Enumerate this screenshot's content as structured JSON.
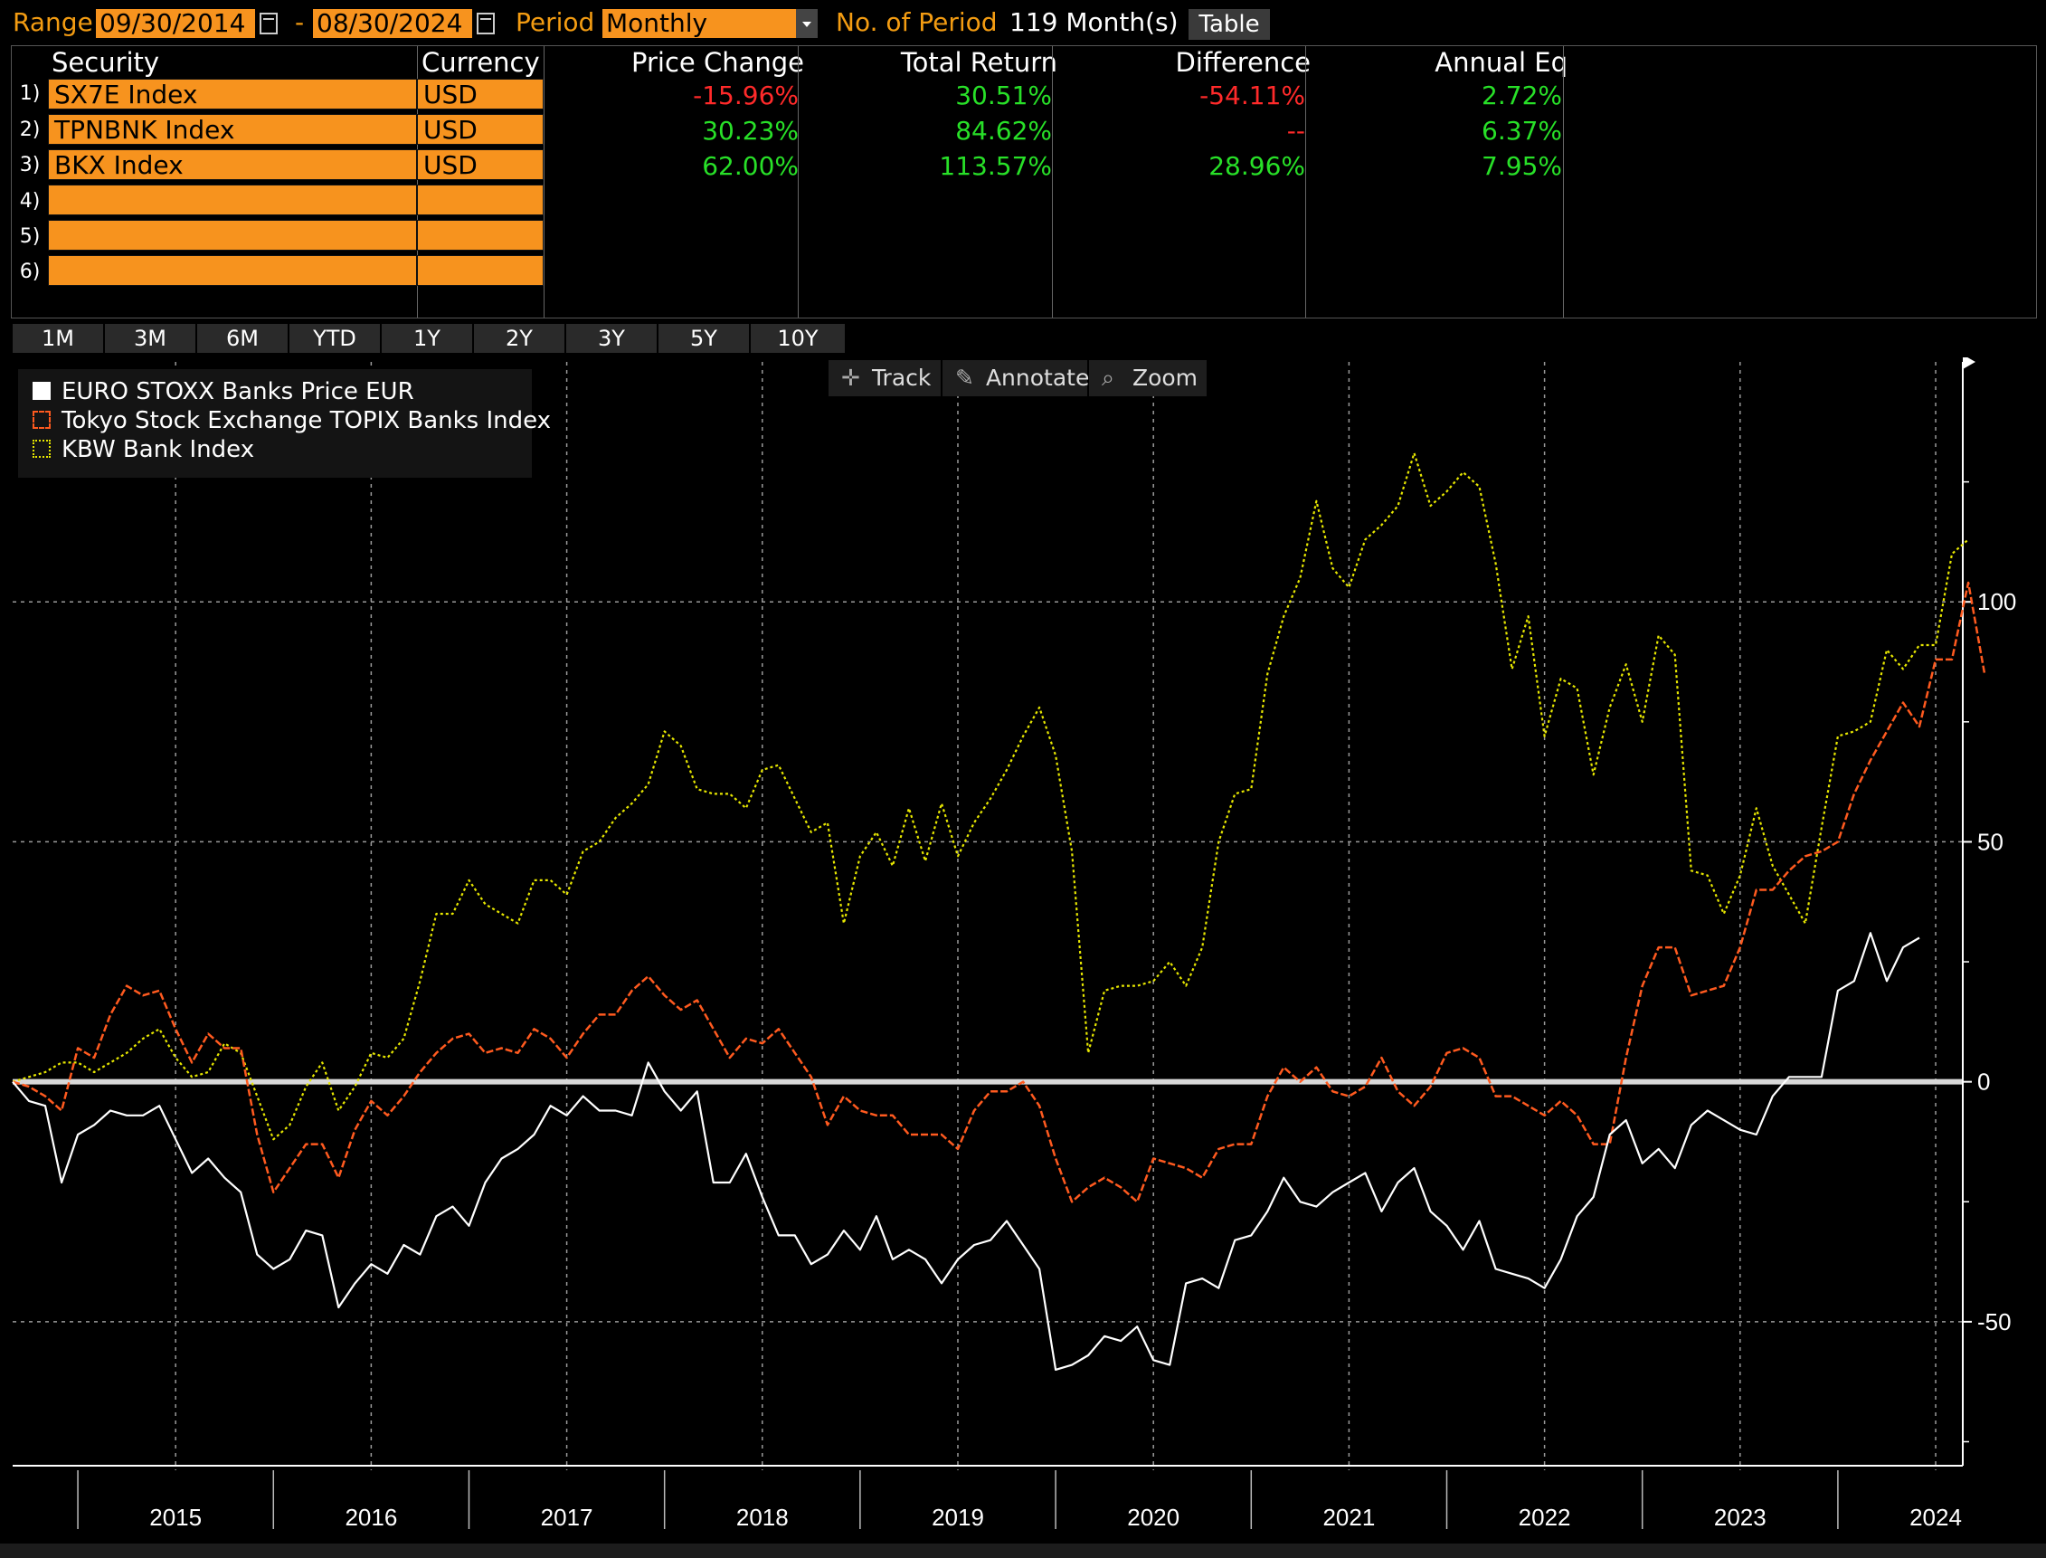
{
  "header": {
    "range_label": "Range",
    "start_date": "09/30/2014",
    "range_sep": "-",
    "end_date": "08/30/2024",
    "period_label": "Period",
    "period_value": "Monthly",
    "num_period_label": "No. of Period",
    "num_period_value": "119 Month(s)",
    "table_button": "Table"
  },
  "table": {
    "columns": [
      "Security",
      "Currency",
      "Price Change",
      "Total Return",
      "Difference",
      "Annual Eq"
    ],
    "rows": [
      {
        "num": "1)",
        "security": "SX7E Index",
        "currency": "USD",
        "price_change": "-15.96%",
        "total_return": "30.51%",
        "difference": "-54.11%",
        "annual_eq": "2.72%"
      },
      {
        "num": "2)",
        "security": "TPNBNK Index",
        "currency": "USD",
        "price_change": "30.23%",
        "total_return": "84.62%",
        "difference": "--",
        "annual_eq": "6.37%"
      },
      {
        "num": "3)",
        "security": "BKX Index",
        "currency": "USD",
        "price_change": "62.00%",
        "total_return": "113.57%",
        "difference": "28.96%",
        "annual_eq": "7.95%"
      },
      {
        "num": "4)",
        "security": "",
        "currency": "",
        "price_change": "",
        "total_return": "",
        "difference": "",
        "annual_eq": ""
      },
      {
        "num": "5)",
        "security": "",
        "currency": "",
        "price_change": "",
        "total_return": "",
        "difference": "",
        "annual_eq": ""
      },
      {
        "num": "6)",
        "security": "",
        "currency": "",
        "price_change": "",
        "total_return": "",
        "difference": "",
        "annual_eq": ""
      }
    ]
  },
  "periods": [
    "1M",
    "3M",
    "6M",
    "YTD",
    "1Y",
    "2Y",
    "3Y",
    "5Y",
    "10Y"
  ],
  "tools": {
    "track": "Track",
    "annotate": "Annotate",
    "zoom": "Zoom"
  },
  "colors": {
    "orange": "#f7931e",
    "white": "#ffffff",
    "tokyo": "#ff5a1f",
    "kbw": "#e6e600",
    "positive": "#28e028",
    "negative": "#ff2a2a"
  },
  "chart_data": {
    "type": "line",
    "x_start": "2014-09",
    "x_step": "month",
    "x_ticks": [
      "2015",
      "2016",
      "2017",
      "2018",
      "2019",
      "2020",
      "2021",
      "2022",
      "2023",
      "2024"
    ],
    "y_ticks": [
      -50,
      0,
      50,
      100
    ],
    "ylim": [
      -80,
      150
    ],
    "grid": true,
    "legend": "top-left",
    "series": [
      {
        "name": "EURO STOXX Banks Price EUR",
        "style": "solid",
        "color": "#ffffff",
        "values": [
          0,
          -4,
          -5,
          -21,
          -11,
          -9,
          -6,
          -7,
          -7,
          -5,
          -12,
          -19,
          -16,
          -20,
          -23,
          -36,
          -39,
          -37,
          -31,
          -32,
          -47,
          -42,
          -38,
          -40,
          -34,
          -36,
          -28,
          -26,
          -30,
          -21,
          -16,
          -14,
          -11,
          -5,
          -7,
          -3,
          -6,
          -6,
          -7,
          4,
          -2,
          -6,
          -2,
          -21,
          -21,
          -15,
          -24,
          -32,
          -32,
          -38,
          -36,
          -31,
          -35,
          -28,
          -37,
          -35,
          -37,
          -42,
          -37,
          -34,
          -33,
          -29,
          -34,
          -39,
          -60,
          -59,
          -57,
          -53,
          -54,
          -51,
          -58,
          -59,
          -42,
          -41,
          -43,
          -33,
          -32,
          -27,
          -20,
          -25,
          -26,
          -23,
          -21,
          -19,
          -27,
          -21,
          -18,
          -27,
          -30,
          -35,
          -29,
          -39,
          -40,
          -41,
          -43,
          -37,
          -28,
          -24,
          -11,
          -8,
          -17,
          -14,
          -18,
          -9,
          -6,
          -8,
          -10,
          -11,
          -3,
          1,
          1,
          1,
          19,
          21,
          31,
          21,
          28,
          30
        ]
      },
      {
        "name": "Tokyo Stock Exchange TOPIX Banks Index",
        "style": "dashed",
        "color": "#ff5a1f",
        "values": [
          0,
          -1,
          -3,
          -6,
          7,
          5,
          14,
          20,
          18,
          19,
          11,
          4,
          10,
          7,
          7,
          -11,
          -23,
          -18,
          -13,
          -13,
          -20,
          -10,
          -4,
          -7,
          -3,
          2,
          6,
          9,
          10,
          6,
          7,
          6,
          11,
          9,
          5,
          10,
          14,
          14,
          19,
          22,
          18,
          15,
          17,
          11,
          5,
          9,
          8,
          11,
          6,
          1,
          -9,
          -3,
          -6,
          -7,
          -7,
          -11,
          -11,
          -11,
          -14,
          -6,
          -2,
          -2,
          0,
          -5,
          -16,
          -25,
          -22,
          -20,
          -22,
          -25,
          -16,
          -17,
          -18,
          -20,
          -14,
          -13,
          -13,
          -3,
          3,
          0,
          3,
          -2,
          -3,
          -1,
          5,
          -2,
          -5,
          -1,
          6,
          7,
          5,
          -3,
          -3,
          -5,
          -7,
          -4,
          -7,
          -13,
          -13,
          5,
          20,
          28,
          28,
          18,
          19,
          20,
          28,
          40,
          40,
          44,
          47,
          48,
          50,
          60,
          67,
          73,
          79,
          74,
          88,
          88,
          104,
          85
        ]
      },
      {
        "name": "KBW Bank Index",
        "style": "dotted",
        "color": "#e6e600",
        "values": [
          0,
          1,
          2,
          4,
          4,
          2,
          4,
          6,
          9,
          11,
          5,
          1,
          2,
          8,
          6,
          -3,
          -12,
          -9,
          -1,
          4,
          -6,
          -1,
          6,
          5,
          9,
          21,
          35,
          35,
          42,
          37,
          35,
          33,
          42,
          42,
          39,
          48,
          50,
          55,
          58,
          62,
          73,
          70,
          61,
          60,
          60,
          57,
          65,
          66,
          59,
          52,
          54,
          33,
          47,
          52,
          45,
          57,
          46,
          58,
          47,
          54,
          59,
          65,
          72,
          78,
          68,
          48,
          6,
          19,
          20,
          20,
          21,
          25,
          20,
          28,
          50,
          60,
          61,
          85,
          97,
          105,
          121,
          107,
          103,
          113,
          116,
          120,
          131,
          120,
          123,
          127,
          124,
          108,
          86,
          97,
          72,
          84,
          82,
          64,
          78,
          87,
          75,
          93,
          89,
          44,
          43,
          35,
          43,
          57,
          45,
          39,
          33,
          53,
          72,
          73,
          75,
          90,
          86,
          91,
          91,
          110,
          113
        ]
      }
    ]
  }
}
